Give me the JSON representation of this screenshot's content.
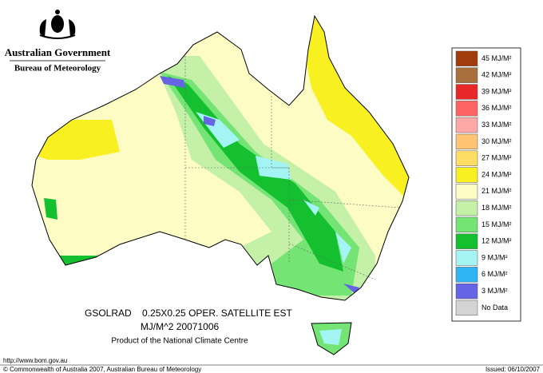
{
  "header": {
    "government": "Australian Government",
    "bureau": "Bureau of Meteorology"
  },
  "legend": [
    {
      "label": "45 MJ/M²",
      "color": "#a23c0c"
    },
    {
      "label": "42 MJ/M²",
      "color": "#a8703c"
    },
    {
      "label": "39 MJ/M²",
      "color": "#e82828"
    },
    {
      "label": "36 MJ/M²",
      "color": "#ff6464"
    },
    {
      "label": "33 MJ/M²",
      "color": "#ffa8a8"
    },
    {
      "label": "30 MJ/M²",
      "color": "#ffc474"
    },
    {
      "label": "27 MJ/M²",
      "color": "#ffdc64"
    },
    {
      "label": "24 MJ/M²",
      "color": "#f8f020"
    },
    {
      "label": "21 MJ/M²",
      "color": "#fcfcc4"
    },
    {
      "label": "18 MJ/M²",
      "color": "#c4f0a8"
    },
    {
      "label": "15 MJ/M²",
      "color": "#74e474"
    },
    {
      "label": "12 MJ/M²",
      "color": "#14c030"
    },
    {
      "label": "9 MJ/M²",
      "color": "#a4f4f4"
    },
    {
      "label": "6 MJ/M²",
      "color": "#30b4f4"
    },
    {
      "label": "3 MJ/M²",
      "color": "#6464e4"
    },
    {
      "label": "No Data",
      "color": "#d4d4d4"
    }
  ],
  "caption": {
    "line1": "GSOLRAD    0.25X0.25 OPER. SATELLITE EST",
    "line2": "MJ/M^2  20071006",
    "line3": "Product of the National Climate Centre"
  },
  "footer": {
    "url": "http://www.bom.gov.au",
    "copyright": "© Commonwealth of Australia 2007, Australian Bureau of Meteorology",
    "issued": "Issued: 06/10/2007"
  }
}
